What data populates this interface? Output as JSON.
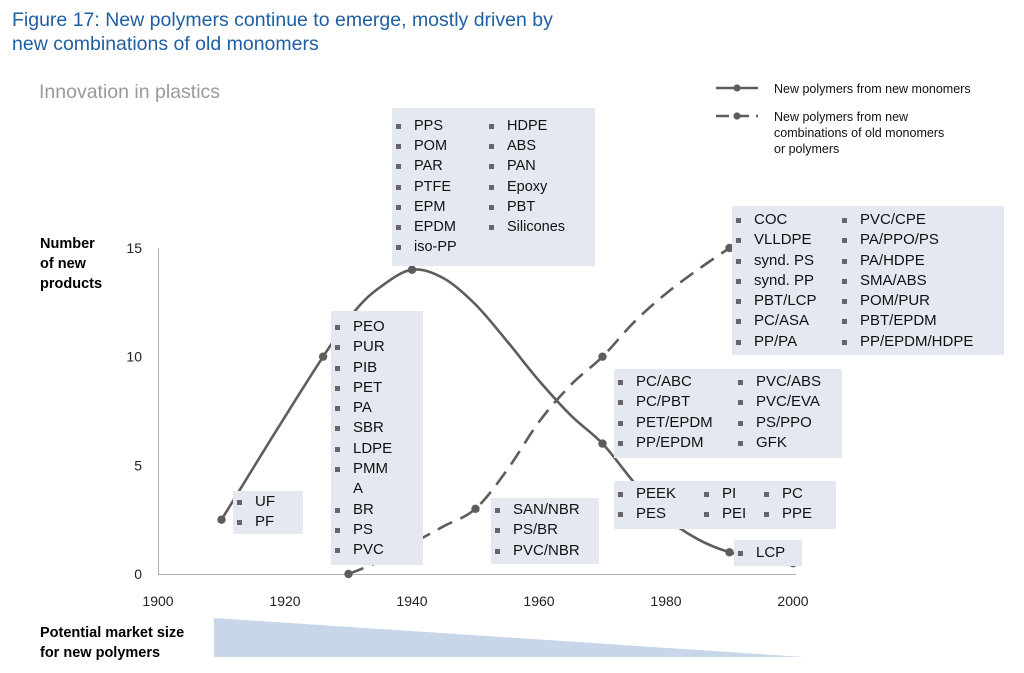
{
  "figure_title": "Figure 17: New polymers continue to emerge, mostly driven by new combinations of old monomers",
  "colors": {
    "title": "#1f5fa3",
    "line": "#5d5d5d",
    "box": "#e4e9f1",
    "market": "#c8d6ea"
  },
  "chart_data": {
    "type": "line",
    "title": "Innovation in plastics",
    "ylabel": "Number of new products",
    "xlabel": "",
    "xlim": [
      1900,
      2000
    ],
    "ylim": [
      0,
      15
    ],
    "x_ticks": [
      1900,
      1920,
      1940,
      1960,
      1980,
      2000
    ],
    "y_ticks": [
      0,
      5,
      10,
      15
    ],
    "legend_position": "top-right",
    "series": [
      {
        "name": "New polymers from new monomers",
        "style": "solid",
        "marked_points": [
          [
            1910,
            2.5
          ],
          [
            1926,
            10
          ],
          [
            1940,
            14
          ],
          [
            1970,
            6
          ],
          [
            1990,
            1
          ],
          [
            2000,
            0.5
          ]
        ],
        "curve": [
          [
            1910,
            2.5
          ],
          [
            1918,
            6.3
          ],
          [
            1926,
            10
          ],
          [
            1931,
            12.1
          ],
          [
            1935,
            13.2
          ],
          [
            1940,
            14
          ],
          [
            1945,
            13.6
          ],
          [
            1950,
            12.4
          ],
          [
            1955,
            10.7
          ],
          [
            1960,
            8.9
          ],
          [
            1965,
            7.3
          ],
          [
            1970,
            6
          ],
          [
            1975,
            4.2
          ],
          [
            1980,
            2.6
          ],
          [
            1985,
            1.6
          ],
          [
            1990,
            1
          ],
          [
            1995,
            0.7
          ],
          [
            2000,
            0.5
          ]
        ]
      },
      {
        "name": "New polymers from new combinations of old monomers or polymers",
        "style": "dashed",
        "marked_points": [
          [
            1930,
            0
          ],
          [
            1950,
            3
          ],
          [
            1970,
            10
          ],
          [
            1990,
            15
          ]
        ],
        "curve": [
          [
            1930,
            0
          ],
          [
            1935,
            0.6
          ],
          [
            1940,
            1.4
          ],
          [
            1945,
            2.2
          ],
          [
            1950,
            3
          ],
          [
            1955,
            4.8
          ],
          [
            1960,
            7
          ],
          [
            1965,
            8.7
          ],
          [
            1970,
            10
          ],
          [
            1975,
            11.6
          ],
          [
            1980,
            12.9
          ],
          [
            1985,
            14
          ],
          [
            1990,
            15
          ]
        ]
      }
    ],
    "annotations": {
      "uf_pf": [
        "UF",
        "PF"
      ],
      "early_polymers": [
        "PEO",
        "PUR",
        "PIB",
        "PET",
        "PA",
        "SBR",
        "LDPE",
        "PMM",
        "BR",
        "PS",
        "PVC"
      ],
      "early_polymers_wrap": "A",
      "peak_left": [
        "PPS",
        "POM",
        "PAR",
        "PTFE",
        "EPM",
        "EPDM",
        "iso-PP"
      ],
      "peak_right": [
        "HDPE",
        "ABS",
        "PAN",
        "Epoxy",
        "PBT",
        "Silicones"
      ],
      "san_group": [
        "SAN/NBR",
        "PS/BR",
        "PVC/NBR"
      ],
      "blends_left": [
        "PC/ABC",
        "PC/PBT",
        "PET/EPDM",
        "PP/EPDM"
      ],
      "blends_right": [
        "PVC/ABS",
        "PVC/EVA",
        "PS/PPO",
        "GFK"
      ],
      "late_left": [
        "COC",
        "VLLDPE",
        "synd. PS",
        "synd. PP",
        "PBT/LCP",
        "PC/ASA",
        "PP/PA"
      ],
      "late_right": [
        "PVC/CPE",
        "PA/PPO/PS",
        "PA/HDPE",
        "SMA/ABS",
        "POM/PUR",
        "PBT/EPDM",
        "PP/EPDM/HDPE"
      ],
      "peek_col1": [
        "PEEK",
        "PES"
      ],
      "peek_col2": [
        "PI",
        "PEI"
      ],
      "peek_col3": [
        "PC",
        "PPE"
      ],
      "lcp": [
        "LCP"
      ]
    },
    "market_size_label": "Potential market size for new polymers"
  }
}
